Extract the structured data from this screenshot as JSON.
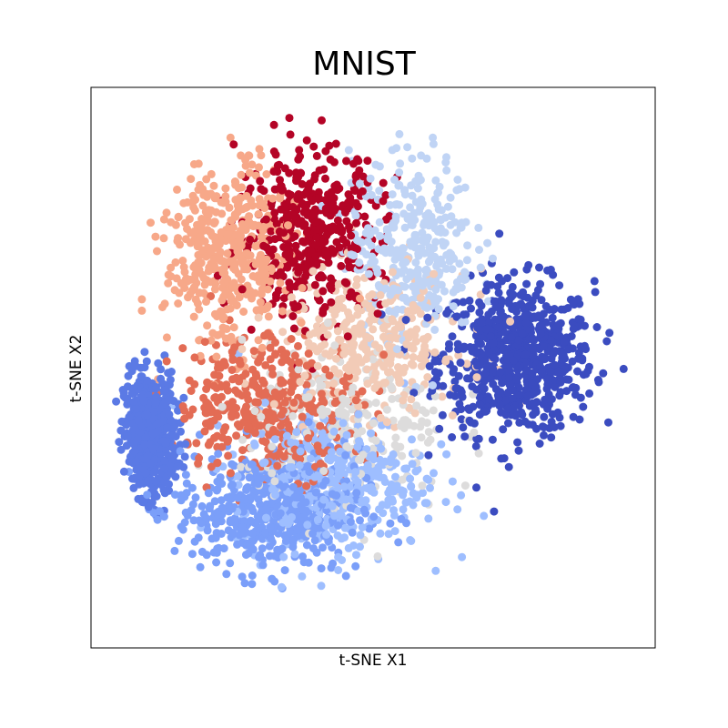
{
  "chart_data": {
    "type": "scatter",
    "title": "MNIST",
    "xlabel": "t-SNE X1",
    "ylabel": "t-SNE X2",
    "xticks": false,
    "yticks": false,
    "grid": false,
    "legend": "none",
    "colormap": "coolwarm",
    "clusters": [
      {
        "class": 0,
        "color": "#3b4cc0",
        "center": [
          0.78,
          0.52
        ],
        "spread": [
          0.075,
          0.075
        ],
        "count": 700
      },
      {
        "class": 1,
        "color": "#5b7ae5",
        "center": [
          0.07,
          0.37
        ],
        "spread": [
          0.025,
          0.06
        ],
        "count": 550
      },
      {
        "class": 2,
        "color": "#7b9ff9",
        "center": [
          0.3,
          0.22
        ],
        "spread": [
          0.09,
          0.06
        ],
        "count": 500
      },
      {
        "class": 3,
        "color": "#9ebeff",
        "center": [
          0.42,
          0.28
        ],
        "spread": [
          0.09,
          0.07
        ],
        "count": 450
      },
      {
        "class": 4,
        "color": "#c0d4f5",
        "center": [
          0.58,
          0.74
        ],
        "spread": [
          0.06,
          0.09
        ],
        "count": 350
      },
      {
        "class": 5,
        "color": "#dddcdc",
        "center": [
          0.45,
          0.38
        ],
        "spread": [
          0.1,
          0.08
        ],
        "count": 250
      },
      {
        "class": 6,
        "color": "#f2cbb7",
        "center": [
          0.5,
          0.55
        ],
        "spread": [
          0.09,
          0.07
        ],
        "count": 350
      },
      {
        "class": 7,
        "color": "#f7a889",
        "center": [
          0.22,
          0.72
        ],
        "spread": [
          0.06,
          0.09
        ],
        "count": 450
      },
      {
        "class": 8,
        "color": "#e36c55",
        "center": [
          0.3,
          0.43
        ],
        "spread": [
          0.09,
          0.07
        ],
        "count": 400
      },
      {
        "class": 9,
        "color": "#b40426",
        "center": [
          0.38,
          0.77
        ],
        "spread": [
          0.07,
          0.08
        ],
        "count": 450
      }
    ]
  }
}
